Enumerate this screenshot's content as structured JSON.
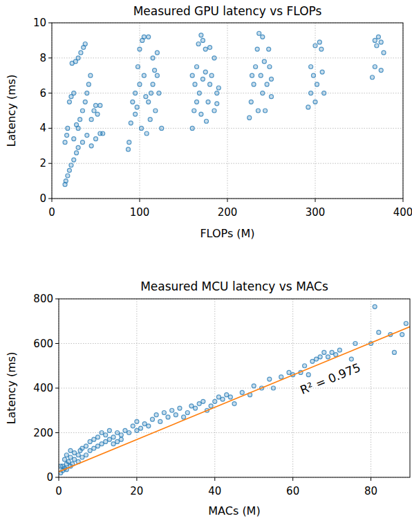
{
  "chart_data": [
    {
      "type": "scatter",
      "title": "Measured GPU latency vs FLOPs",
      "x_label": "FLOPs (M)",
      "y_label": "Latency (ms)",
      "xlim": [
        0,
        400
      ],
      "ylim": [
        0,
        10
      ],
      "xticks": [
        0,
        100,
        200,
        300,
        400
      ],
      "yticks": [
        0,
        2,
        4,
        6,
        8,
        10
      ],
      "grid": true,
      "series": [
        {
          "type": "scatter",
          "marker": "o",
          "color": "#1f77b4",
          "x": [
            15,
            16,
            18,
            20,
            22,
            25,
            28,
            30,
            35,
            40,
            45,
            50,
            55,
            15,
            17,
            18,
            20,
            22,
            25,
            23,
            27,
            30,
            33,
            36,
            38,
            32,
            35,
            38,
            40,
            42,
            44,
            30,
            45,
            48,
            50,
            52,
            55,
            58,
            25,
            28,
            87,
            88,
            90,
            92,
            95,
            98,
            100,
            103,
            105,
            110,
            100,
            105,
            110,
            115,
            120,
            112,
            118,
            122,
            125,
            108,
            95,
            102,
            107,
            115,
            120,
            97,
            113,
            117,
            160,
            162,
            163,
            165,
            167,
            170,
            172,
            175,
            168,
            172,
            175,
            178,
            180,
            182,
            185,
            188,
            190,
            185,
            170,
            176,
            165,
            180,
            188,
            160,
            225,
            227,
            230,
            232,
            234,
            236,
            240,
            238,
            240,
            243,
            245,
            248,
            250,
            247,
            235,
            242,
            228,
            250,
            292,
            295,
            298,
            300,
            305,
            302,
            308,
            310,
            300,
            307,
            295,
            365,
            368,
            370,
            372,
            375,
            378,
            368,
            375
          ],
          "values": [
            0.8,
            1.0,
            1.3,
            1.6,
            1.9,
            2.2,
            2.6,
            2.9,
            3.2,
            3.6,
            3.0,
            3.4,
            3.7,
            3.2,
            3.6,
            4.0,
            5.5,
            5.8,
            6.0,
            7.7,
            7.8,
            8.0,
            8.3,
            8.6,
            8.8,
            4.5,
            5.0,
            5.5,
            6.0,
            6.5,
            7.0,
            4.0,
            4.5,
            5.0,
            5.3,
            4.8,
            5.3,
            3.7,
            3.4,
            4.2,
            2.8,
            3.2,
            4.3,
            5.5,
            6.0,
            7.5,
            8.5,
            9.0,
            9.2,
            9.2,
            6.5,
            7.0,
            5.5,
            6.5,
            7.0,
            4.5,
            5.0,
            6.0,
            4.0,
            3.7,
            4.8,
            4.0,
            5.8,
            8.0,
            8.3,
            5.2,
            6.0,
            7.3,
            4.0,
            5.0,
            6.5,
            7.5,
            8.8,
            9.3,
            9.0,
            8.5,
            6.0,
            6.8,
            7.2,
            5.5,
            6.5,
            7.0,
            5.0,
            6.0,
            6.3,
            8.0,
            4.8,
            4.4,
            5.5,
            8.6,
            5.4,
            7.0,
            4.6,
            5.5,
            6.5,
            7.5,
            8.5,
            9.4,
            9.2,
            7.0,
            6.0,
            5.0,
            6.5,
            7.5,
            5.8,
            8.5,
            5.0,
            7.8,
            7.0,
            6.8,
            5.2,
            6.0,
            7.0,
            8.7,
            8.9,
            6.5,
            7.2,
            6.0,
            5.5,
            8.5,
            7.5,
            6.9,
            7.5,
            8.7,
            9.2,
            8.9,
            8.3,
            9.0,
            7.3
          ]
        }
      ]
    },
    {
      "type": "scatter",
      "title": "Measured MCU latency vs MACs",
      "x_label": "MACs (M)",
      "y_label": "Latency (ms)",
      "xlim": [
        0,
        90
      ],
      "ylim": [
        0,
        800
      ],
      "xticks": [
        0,
        20,
        40,
        60,
        80
      ],
      "yticks": [
        0,
        200,
        400,
        600,
        800
      ],
      "grid": true,
      "annotations": [
        "R² = 0.975"
      ],
      "series": [
        {
          "type": "scatter",
          "marker": "o",
          "color": "#1f77b4",
          "x": [
            0.5,
            1,
            1,
            1.5,
            2,
            2,
            2.5,
            3,
            3,
            3.5,
            4,
            4,
            5,
            5,
            5.5,
            6,
            6,
            7,
            7,
            8,
            8,
            9,
            9,
            10,
            10,
            11,
            11,
            12,
            12,
            13,
            13,
            14,
            15,
            15,
            16,
            17,
            18,
            19,
            20,
            20,
            21,
            22,
            23,
            24,
            25,
            26,
            27,
            28,
            29,
            30,
            31,
            32,
            33,
            34,
            35,
            36,
            37,
            38,
            39,
            40,
            41,
            42,
            43,
            44,
            45,
            47,
            49,
            50,
            52,
            54,
            55,
            57,
            59,
            60,
            62,
            63,
            64,
            65,
            66,
            67,
            68,
            69,
            70,
            71,
            72,
            75,
            76,
            80,
            81,
            82,
            85,
            86,
            88,
            89,
            14,
            16,
            0.5,
            1.5,
            2,
            3
          ],
          "values": [
            20,
            30,
            50,
            40,
            60,
            35,
            70,
            50,
            90,
            60,
            80,
            110,
            70,
            100,
            120,
            90,
            130,
            100,
            140,
            120,
            160,
            130,
            170,
            140,
            180,
            150,
            200,
            160,
            190,
            170,
            210,
            180,
            160,
            200,
            190,
            210,
            200,
            230,
            210,
            250,
            220,
            240,
            230,
            260,
            280,
            250,
            290,
            270,
            300,
            280,
            310,
            270,
            290,
            320,
            310,
            330,
            340,
            300,
            320,
            340,
            360,
            350,
            370,
            360,
            330,
            380,
            370,
            410,
            400,
            440,
            400,
            450,
            470,
            460,
            470,
            500,
            460,
            520,
            530,
            540,
            560,
            540,
            560,
            550,
            570,
            530,
            600,
            600,
            765,
            650,
            640,
            560,
            640,
            690,
            150,
            170,
            50,
            80,
            100,
            120
          ]
        },
        {
          "type": "line",
          "line_style": "solid",
          "color": "#ff7f0e",
          "x": [
            0,
            90
          ],
          "values": [
            25,
            675
          ]
        }
      ]
    }
  ]
}
